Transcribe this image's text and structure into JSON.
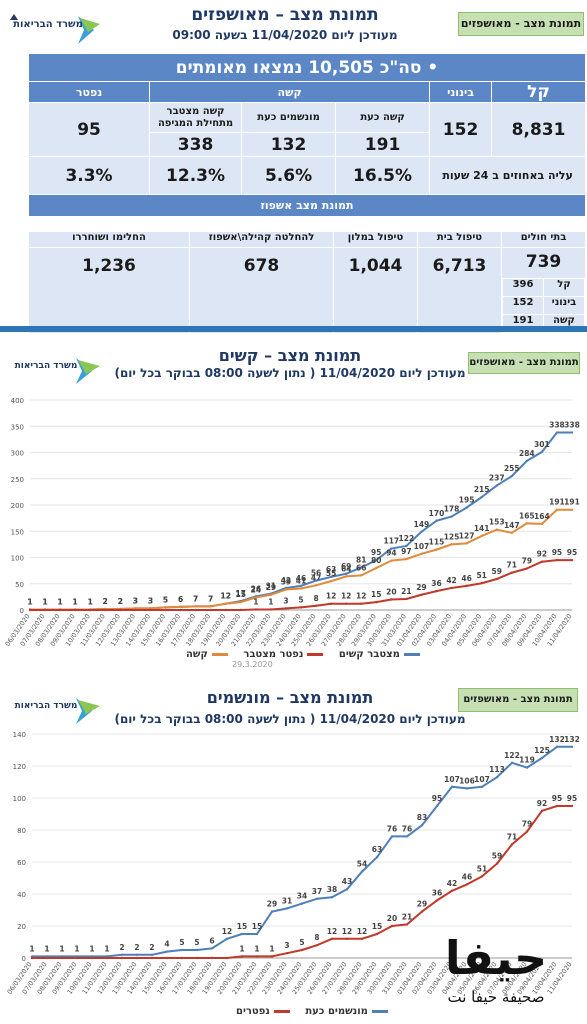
{
  "panel1": {
    "title": "תמונת מצב – מאושפזים",
    "updated": "מעודכן ליום 11/04/2020 בשעה 09:00",
    "tag": "תמונת מצב - מאושפזים",
    "total": "סה\"כ 10,505 נמצאו מאומתים",
    "headers": {
      "light": "קל",
      "moderate": "בינוני",
      "severe": "קשה",
      "dead": "נפטר"
    },
    "values": {
      "light": "8,831",
      "moderate": "152",
      "dead": "95"
    },
    "severe_sub": {
      "labels": [
        "קשה כעת",
        "מונשמים כעת",
        "קשה מצטבר מתחילת המגיפה"
      ],
      "values": [
        "191",
        "132",
        "338"
      ],
      "pcts": [
        "16.5%",
        "5.6%",
        "12.3%"
      ]
    },
    "rise_label": "עליה באחוזים ב 24 שעות",
    "dead_pct": "3.3%",
    "hosp_title": "תמונת מצב אשפוז",
    "hosp_headers": [
      "בתי חולים",
      "טיפול בית",
      "טיפול במלון",
      "להחלטה קהילה\\אשפוז",
      "החלימו ושוחררו"
    ],
    "hosp_values": [
      "739",
      "6,713",
      "1,044",
      "678",
      "1,236"
    ],
    "hosp_breakdown": [
      {
        "label": "קל",
        "value": "396"
      },
      {
        "label": "בינוני",
        "value": "152"
      },
      {
        "label": "קשה",
        "value": "191"
      }
    ]
  },
  "logo_text": "משרד הבריאות",
  "panel2": {
    "title": "תמונת מצב – קשים",
    "subtitle": "מעודכן ליום 11/04/2020 ( נתון לשעה 08:00 בבוקר בכל יום)",
    "tag": "תמונת מצב - מאושפזים",
    "footnote": "29.3.2020"
  },
  "panel3": {
    "title": "תמונת מצב – מונשמים",
    "subtitle": "מעודכן ליום 11/04/2020 ( נתון לשעה 08:00 בבוקר בכל יום)",
    "tag": "תמונת מצב - מאושפזים"
  },
  "watermark": {
    "title": "حيفا",
    "subtitle": "صحيفة حيفا نت"
  },
  "colors": {
    "blue": "#4f7fb8",
    "red": "#c0392b",
    "orange": "#e08a3c",
    "header": "#5b87c7",
    "cell": "#dde6f4",
    "tag": "#c6e0b4"
  },
  "chart_data": [
    {
      "type": "line",
      "ylim": [
        0,
        400
      ],
      "x": [
        "06/03/2020",
        "07/03/2020",
        "08/03/2020",
        "09/03/2020",
        "10/03/2020",
        "11/03/2020",
        "12/03/2020",
        "13/03/2020",
        "14/03/2020",
        "15/03/2020",
        "16/03/2020",
        "17/03/2020",
        "18/03/2020",
        "19/03/2020",
        "20/03/2020",
        "21/03/2020",
        "22/03/2020",
        "23/03/2020",
        "24/03/2020",
        "25/03/2020",
        "26/03/2020",
        "27/03/2020",
        "28/03/2020",
        "29/03/2020",
        "30/03/2020",
        "31/03/2020",
        "01/04/2020",
        "02/04/2020",
        "03/04/2020",
        "04/04/2020",
        "05/04/2020",
        "06/04/2020",
        "07/04/2020",
        "08/04/2020",
        "09/04/2020",
        "10/04/2020",
        "11/04/2020"
      ],
      "yticks": [
        0,
        50,
        100,
        150,
        200,
        250,
        300,
        350,
        400
      ],
      "series": [
        {
          "name": "מצטבר קשים",
          "values": [
            1,
            1,
            1,
            1,
            1,
            2,
            2,
            3,
            3,
            5,
            6,
            7,
            7,
            12,
            17,
            26,
            31,
            42,
            46,
            56,
            63,
            69,
            81,
            95,
            117,
            122,
            149,
            170,
            178,
            195,
            215,
            237,
            255,
            284,
            301,
            338,
            338
          ]
        },
        {
          "name": "קשה",
          "values": [
            1,
            1,
            1,
            1,
            1,
            2,
            2,
            3,
            3,
            5,
            6,
            7,
            7,
            12,
            15,
            24,
            29,
            39,
            41,
            47,
            55,
            64,
            66,
            80,
            94,
            97,
            107,
            115,
            125,
            127,
            141,
            153,
            147,
            165,
            164,
            191,
            191
          ]
        },
        {
          "name": "נפטר מצטבר",
          "values": [
            0,
            0,
            0,
            0,
            0,
            0,
            0,
            0,
            0,
            0,
            0,
            0,
            0,
            0,
            0,
            1,
            1,
            3,
            5,
            8,
            12,
            12,
            12,
            15,
            20,
            21,
            29,
            36,
            42,
            46,
            51,
            59,
            71,
            79,
            92,
            95,
            95
          ]
        }
      ]
    },
    {
      "type": "line",
      "ylim": [
        0,
        140
      ],
      "x": [
        "06/03/2020",
        "07/03/2020",
        "08/03/2020",
        "09/03/2020",
        "10/03/2020",
        "11/03/2020",
        "12/03/2020",
        "13/03/2020",
        "14/03/2020",
        "15/03/2020",
        "16/03/2020",
        "17/03/2020",
        "18/03/2020",
        "19/03/2020",
        "20/03/2020",
        "21/03/2020",
        "22/03/2020",
        "23/03/2020",
        "24/03/2020",
        "25/03/2020",
        "26/03/2020",
        "27/03/2020",
        "28/03/2020",
        "29/03/2020",
        "30/03/2020",
        "31/03/2020",
        "01/04/2020",
        "02/04/2020",
        "03/04/2020",
        "04/04/2020",
        "05/04/2020",
        "06/04/2020",
        "07/04/2020",
        "08/04/2020",
        "09/04/2020",
        "10/04/2020",
        "11/04/2020"
      ],
      "yticks": [
        0,
        20,
        40,
        60,
        80,
        100,
        120,
        140
      ],
      "series": [
        {
          "name": "מונשמים כעת",
          "values": [
            1,
            1,
            1,
            1,
            1,
            1,
            2,
            2,
            2,
            4,
            5,
            5,
            6,
            12,
            15,
            15,
            29,
            31,
            34,
            37,
            38,
            43,
            54,
            63,
            76,
            76,
            83,
            95,
            107,
            106,
            107,
            113,
            122,
            119,
            125,
            132,
            132
          ]
        },
        {
          "name": "נפטרים",
          "values": [
            0,
            0,
            0,
            0,
            0,
            0,
            0,
            0,
            0,
            0,
            0,
            0,
            0,
            0,
            1,
            1,
            1,
            3,
            5,
            8,
            12,
            12,
            12,
            15,
            20,
            21,
            29,
            36,
            42,
            46,
            51,
            59,
            71,
            79,
            92,
            95,
            95
          ]
        }
      ]
    }
  ]
}
